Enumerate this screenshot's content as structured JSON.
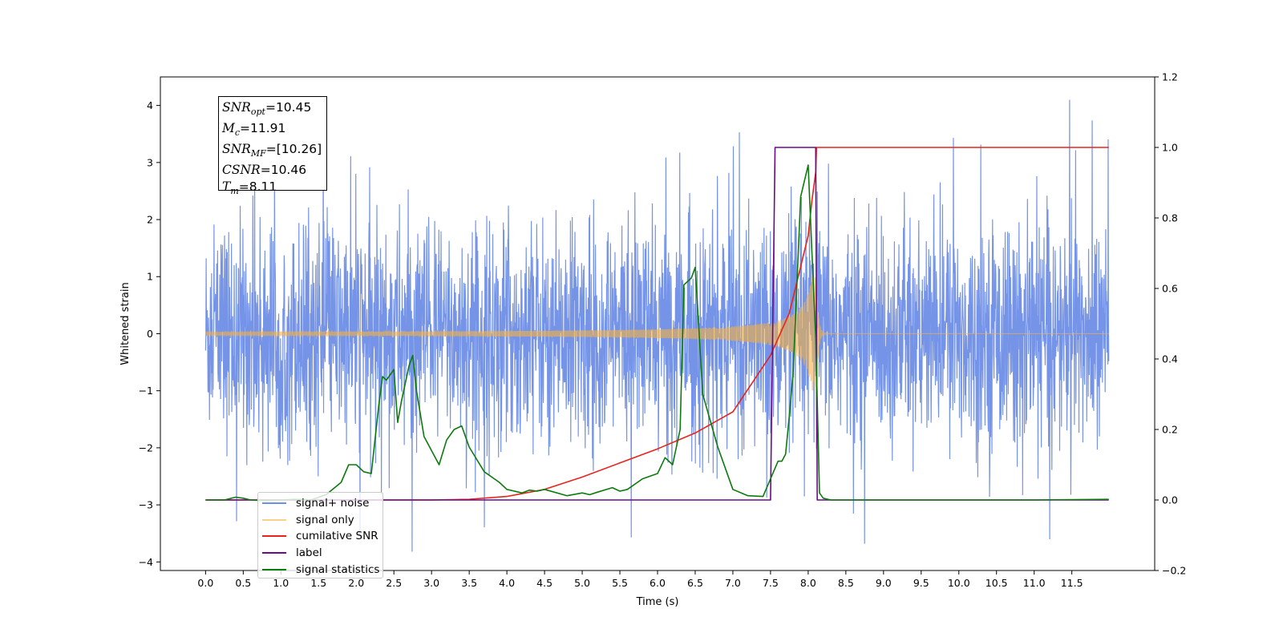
{
  "chart_data": {
    "type": "line",
    "xlabel": "Time (s)",
    "ylabel": "Whitened strain",
    "xlim": [
      -0.6,
      12.6
    ],
    "ylim": [
      -4.15,
      4.5
    ],
    "y2lim": [
      -0.2,
      1.2
    ],
    "x_ticks": [
      "0.0",
      "0.5",
      "1.0",
      "1.5",
      "2.0",
      "2.5",
      "3.0",
      "3.5",
      "4.0",
      "4.5",
      "5.0",
      "5.5",
      "6.0",
      "6.5",
      "7.0",
      "7.5",
      "8.0",
      "8.5",
      "9.0",
      "9.5",
      "10.0",
      "10.5",
      "11.0",
      "11.5"
    ],
    "y_ticks": [
      "−4",
      "−3",
      "−2",
      "−1",
      "0",
      "1",
      "2",
      "3",
      "4"
    ],
    "y2_ticks": [
      "−0.2",
      "0.0",
      "0.2",
      "0.4",
      "0.6",
      "0.8",
      "1.0",
      "1.2"
    ],
    "grid": false,
    "legend_position": "lower-left",
    "info_box": {
      "snr_opt": "=10.45",
      "mc": "=11.91",
      "snr_mf": "=[10.26]",
      "csnr": "=10.46",
      "tm": "=8.11"
    },
    "series": [
      {
        "name": "signal+ noise",
        "color": "#6e8ee6",
        "axis": "left",
        "description_values": "noise band roughly ±2.5 with spikes to ±4.1 over t=0.0–12.0"
      },
      {
        "name": "signal only",
        "color": "#f5b041",
        "axis": "left",
        "chirp_start": 4.0,
        "merger": 8.11,
        "peak_amplitude": 1.0
      },
      {
        "name": "cumilative SNR",
        "color": "#e8231d",
        "axis": "right",
        "x": [
          0.0,
          3.0,
          3.5,
          4.0,
          4.5,
          5.0,
          5.5,
          6.0,
          6.5,
          7.0,
          7.5,
          7.75,
          8.0,
          8.05,
          8.1,
          8.11,
          11.99
        ],
        "y": [
          0.0,
          0.0,
          0.002,
          0.01,
          0.03,
          0.065,
          0.105,
          0.145,
          0.19,
          0.25,
          0.41,
          0.53,
          0.75,
          0.85,
          0.93,
          1.0,
          1.0
        ]
      },
      {
        "name": "label",
        "color": "#6c0a8a",
        "axis": "right",
        "x": [
          0.0,
          7.5,
          7.56,
          8.1,
          8.12,
          11.99
        ],
        "y": [
          0.0,
          0.0,
          1.0,
          1.0,
          0.0,
          0.0
        ]
      },
      {
        "name": "signal statistics",
        "color": "#0d7a0d",
        "axis": "right",
        "x": [
          0.0,
          0.25,
          0.4,
          0.5,
          0.6,
          0.8,
          1.0,
          1.2,
          1.4,
          1.6,
          1.8,
          1.9,
          2.0,
          2.1,
          2.2,
          2.3,
          2.35,
          2.4,
          2.5,
          2.55,
          2.6,
          2.7,
          2.75,
          2.8,
          2.9,
          3.0,
          3.1,
          3.2,
          3.3,
          3.4,
          3.5,
          3.7,
          3.9,
          4.0,
          4.2,
          4.3,
          4.4,
          4.5,
          4.8,
          5.0,
          5.1,
          5.2,
          5.4,
          5.5,
          5.6,
          5.8,
          6.0,
          6.1,
          6.2,
          6.3,
          6.35,
          6.45,
          6.5,
          6.6,
          6.8,
          7.0,
          7.2,
          7.4,
          7.6,
          7.65,
          7.7,
          7.75,
          7.8,
          7.9,
          8.0,
          8.05,
          8.1,
          8.15,
          8.2,
          8.3,
          9.0,
          10.0,
          11.0,
          11.99
        ],
        "y": [
          0.0,
          0.0,
          0.008,
          0.005,
          0.0,
          -0.002,
          0.0,
          0.002,
          0.0,
          0.015,
          0.05,
          0.1,
          0.1,
          0.08,
          0.075,
          0.27,
          0.35,
          0.34,
          0.37,
          0.22,
          0.28,
          0.38,
          0.41,
          0.31,
          0.18,
          0.14,
          0.1,
          0.17,
          0.2,
          0.21,
          0.15,
          0.08,
          0.05,
          0.03,
          0.02,
          0.028,
          0.025,
          0.03,
          0.012,
          0.02,
          0.015,
          0.022,
          0.035,
          0.025,
          0.03,
          0.06,
          0.075,
          0.12,
          0.1,
          0.2,
          0.61,
          0.63,
          0.66,
          0.3,
          0.15,
          0.03,
          0.012,
          0.01,
          0.11,
          0.11,
          0.13,
          0.24,
          0.36,
          0.86,
          0.95,
          0.7,
          0.46,
          0.02,
          0.005,
          0.0,
          0.0,
          0.0,
          0.0,
          0.002
        ]
      }
    ]
  }
}
